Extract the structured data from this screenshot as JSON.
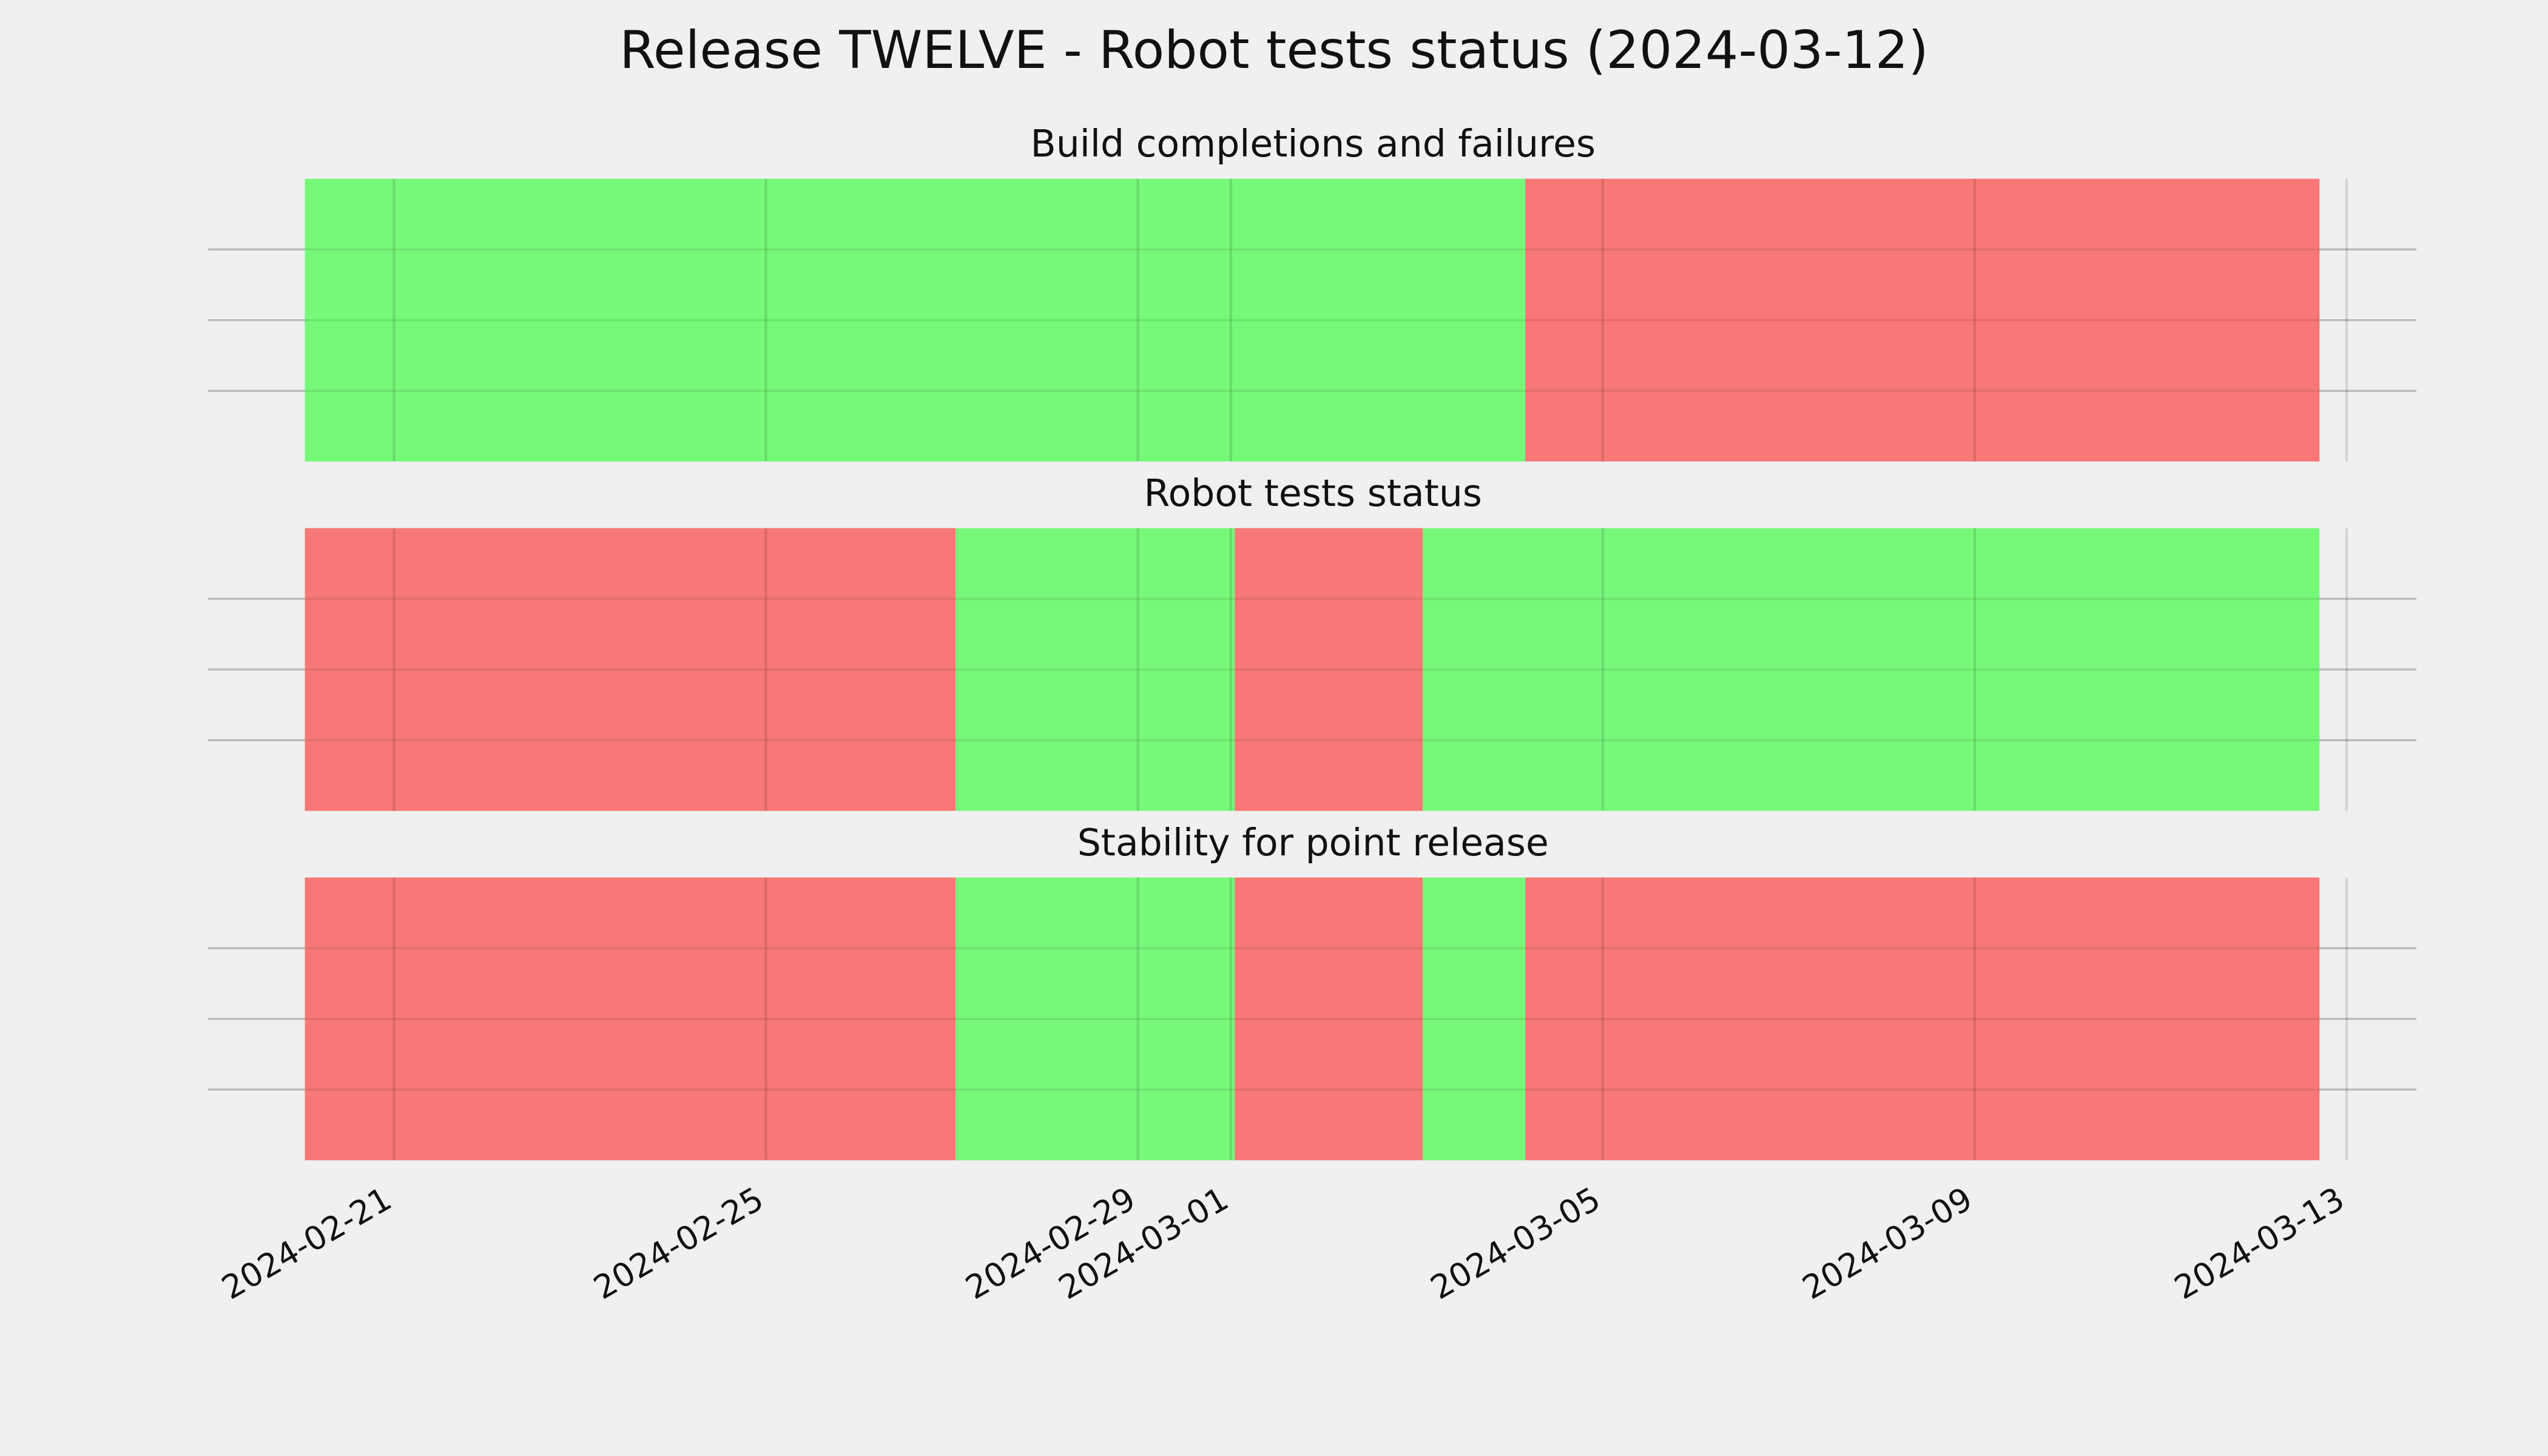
{
  "title": "Release TWELVE - Robot tests status (2024-03-12)",
  "chart_data": [
    {
      "type": "timeline",
      "title": "Build completions and failures",
      "segments": [
        {
          "start": "2024-02-20T01:00",
          "end": "2024-03-04T04:00",
          "color": "#76f879"
        },
        {
          "start": "2024-03-04T04:00",
          "end": "2024-03-12T17:00",
          "color": "#f77877"
        }
      ],
      "xlim": [
        "2024-02-19",
        "2024-03-13T18:00"
      ],
      "xticks": [
        "2024-02-21",
        "2024-02-25",
        "2024-02-29",
        "2024-03-01",
        "2024-03-05",
        "2024-03-09",
        "2024-03-13"
      ],
      "ylim": [
        0,
        1
      ],
      "yticks": [
        0.25,
        0.5,
        0.75
      ],
      "grid": true,
      "xtick_labels": false
    },
    {
      "type": "timeline",
      "title": "Robot tests status",
      "segments": [
        {
          "start": "2024-02-20T01:00",
          "end": "2024-02-27T01:00",
          "color": "#f77877"
        },
        {
          "start": "2024-02-27T01:00",
          "end": "2024-03-01T01:00",
          "color": "#76f879"
        },
        {
          "start": "2024-03-01T01:00",
          "end": "2024-03-03T01:30",
          "color": "#f77877"
        },
        {
          "start": "2024-03-03T01:30",
          "end": "2024-03-12T17:00",
          "color": "#76f879"
        }
      ],
      "xlim": [
        "2024-02-19",
        "2024-03-13T18:00"
      ],
      "xticks": [
        "2024-02-21",
        "2024-02-25",
        "2024-02-29",
        "2024-03-01",
        "2024-03-05",
        "2024-03-09",
        "2024-03-13"
      ],
      "ylim": [
        0,
        1
      ],
      "yticks": [
        0.25,
        0.5,
        0.75
      ],
      "grid": true,
      "xtick_labels": false
    },
    {
      "type": "timeline",
      "title": "Stability for point release",
      "segments": [
        {
          "start": "2024-02-20T01:00",
          "end": "2024-02-27T01:00",
          "color": "#f77877"
        },
        {
          "start": "2024-02-27T01:00",
          "end": "2024-03-01T01:00",
          "color": "#76f879"
        },
        {
          "start": "2024-03-01T01:00",
          "end": "2024-03-03T01:30",
          "color": "#f77877"
        },
        {
          "start": "2024-03-03T01:30",
          "end": "2024-03-04T04:00",
          "color": "#76f879"
        },
        {
          "start": "2024-03-04T04:00",
          "end": "2024-03-12T17:00",
          "color": "#f77877"
        }
      ],
      "xlim": [
        "2024-02-19",
        "2024-03-13T18:00"
      ],
      "xticks": [
        "2024-02-21",
        "2024-02-25",
        "2024-02-29",
        "2024-03-01",
        "2024-03-05",
        "2024-03-09",
        "2024-03-13"
      ],
      "ylim": [
        0,
        1
      ],
      "yticks": [
        0.25,
        0.5,
        0.75
      ],
      "grid": true,
      "xtick_labels": true
    }
  ]
}
